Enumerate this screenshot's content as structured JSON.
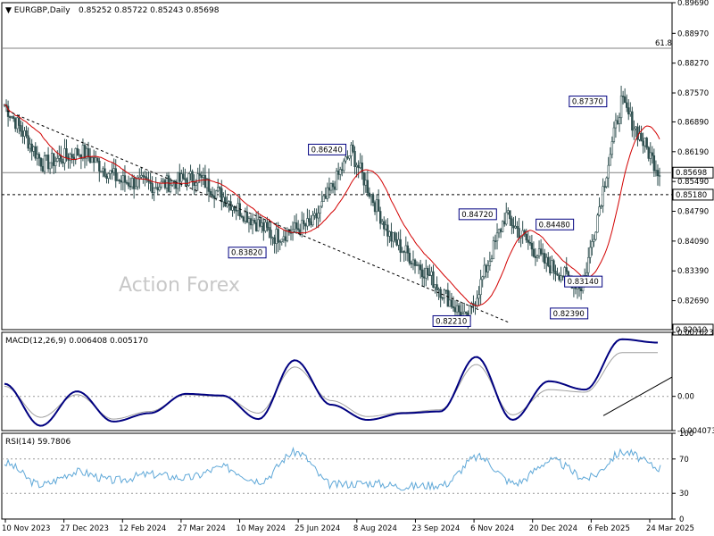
{
  "header": {
    "symbol": "EURGBP,Daily",
    "ohlc": "0.85252 0.85722 0.85243 0.85698"
  },
  "watermark": "Action Forex",
  "colors": {
    "candle": "#2f4f4f",
    "sma": "#d20000",
    "macd_line": "#000080",
    "signal_line": "#a0a0a0",
    "rsi_line": "#5fa8d8",
    "trend_line": "#000000"
  },
  "chart_data": [
    {
      "type": "candlestick",
      "title": "EURGBP,Daily",
      "ylim": [
        0.8201,
        0.8969
      ],
      "y_ticks": [
        "0.89690",
        "0.88970",
        "0.88270",
        "0.87570",
        "0.86890",
        "0.86190",
        "0.85490",
        "0.84790",
        "0.84090",
        "0.83390",
        "0.82690"
      ],
      "x_ticks": [
        "10 Nov 2023",
        "27 Dec 2023",
        "12 Feb 2024",
        "27 Mar 2024",
        "10 May 2024",
        "25 Jun 2024",
        "8 Aug 2024",
        "23 Sep 2024",
        "6 Nov 2024",
        "20 Dec 2024",
        "6 Feb 2025",
        "24 Mar 2025"
      ],
      "reference_lines": [
        {
          "label": "61.8",
          "value": 0.8862,
          "style": "solid"
        },
        {
          "label": "0.85698",
          "value": 0.85698,
          "style": "solid"
        },
        {
          "label": "0.85180",
          "value": 0.8518,
          "style": "dashed"
        },
        {
          "label": "0.82010",
          "value": 0.8201,
          "style": "dashed"
        }
      ],
      "annotations": [
        {
          "text": "0.86240",
          "value": 0.8624,
          "date": "Aug 2024"
        },
        {
          "text": "0.83820",
          "value": 0.8382,
          "date": "May 2024"
        },
        {
          "text": "0.82210",
          "value": 0.8221,
          "date": "Nov 2024"
        },
        {
          "text": "0.84720",
          "value": 0.8472,
          "date": "Dec 2024"
        },
        {
          "text": "0.84480",
          "value": 0.8448,
          "date": "Feb 2025"
        },
        {
          "text": "0.83140",
          "value": 0.8314,
          "date": "Feb 2025"
        },
        {
          "text": "0.82390",
          "value": 0.8239,
          "date": "Feb 2025"
        },
        {
          "text": "0.87370",
          "value": 0.8737,
          "date": "Mar 2025"
        }
      ],
      "close_path": [
        {
          "date": "Nov 2023",
          "value": 0.873
        },
        {
          "date": "Dec 2023",
          "value": 0.859
        },
        {
          "date": "Jan 2024",
          "value": 0.862
        },
        {
          "date": "Feb 2024",
          "value": 0.855
        },
        {
          "date": "Mar 2024",
          "value": 0.854
        },
        {
          "date": "Apr 2024",
          "value": 0.856
        },
        {
          "date": "May 2024",
          "value": 0.849
        },
        {
          "date": "Jun 2024",
          "value": 0.842
        },
        {
          "date": "Jul 2024",
          "value": 0.845
        },
        {
          "date": "Aug 2024",
          "value": 0.862
        },
        {
          "date": "Sep 2024",
          "value": 0.842
        },
        {
          "date": "Oct 2024",
          "value": 0.833
        },
        {
          "date": "Nov 2024",
          "value": 0.822
        },
        {
          "date": "Dec 2024",
          "value": 0.847
        },
        {
          "date": "Jan 2025",
          "value": 0.836
        },
        {
          "date": "Feb 2025",
          "value": 0.83
        },
        {
          "date": "Mar 2025",
          "value": 0.8737
        },
        {
          "date": "Apr 2025",
          "value": 0.85698
        }
      ]
    },
    {
      "type": "line",
      "title": "MACD(12,26,9) 0.006408 0.005170",
      "ylim": [
        -0.004073,
        0.007623
      ],
      "y_ticks": [
        "0.007623",
        "0.00",
        "-0.004073"
      ],
      "series": [
        {
          "name": "MACD",
          "values": [
            0.0015,
            -0.0035,
            0.0006,
            -0.003,
            -0.002,
            0.0003,
            0.0001,
            -0.0027,
            0.0043,
            -0.001,
            -0.0028,
            -0.002,
            -0.0018,
            0.0047,
            -0.0028,
            0.0018,
            0.0008,
            0.0068,
            0.0064
          ]
        },
        {
          "name": "Signal",
          "values": [
            0.0012,
            -0.0025,
            0.0002,
            -0.0027,
            -0.0018,
            0.0002,
            0.0,
            -0.002,
            0.0035,
            -0.0005,
            -0.0024,
            -0.0019,
            -0.0016,
            0.0038,
            -0.0022,
            0.0008,
            0.0005,
            0.0052,
            0.0052
          ]
        }
      ]
    },
    {
      "type": "line",
      "title": "RSI(14) 59.7806",
      "ylim": [
        0,
        100
      ],
      "y_ticks": [
        "100",
        "70",
        "30",
        "0"
      ],
      "reference_levels": [
        70,
        30
      ],
      "series": [
        {
          "name": "RSI",
          "values": [
            65,
            40,
            55,
            45,
            52,
            48,
            60,
            45,
            78,
            40,
            42,
            38,
            40,
            72,
            42,
            68,
            48,
            78,
            59.78
          ]
        }
      ]
    }
  ]
}
